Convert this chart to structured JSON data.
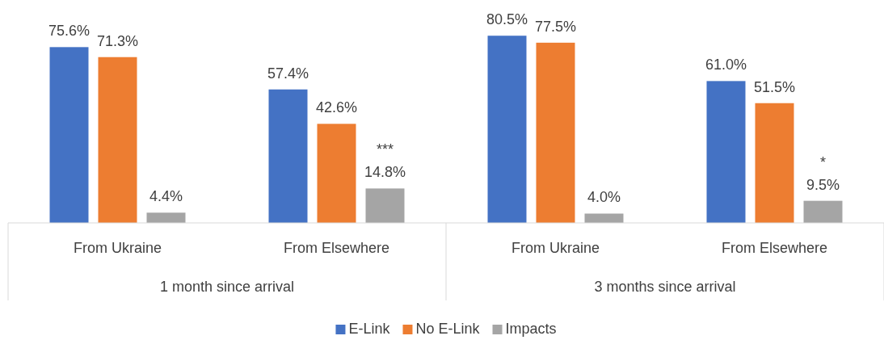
{
  "chart_data": {
    "type": "bar",
    "categories": [
      "From Ukraine",
      "From Elsewhere",
      "From Ukraine",
      "From Elsewhere"
    ],
    "series": [
      {
        "name": "E-Link",
        "color": "#4472c4",
        "values": [
          75.6,
          57.4,
          80.5,
          61.0
        ],
        "value_labels": [
          "75.6%",
          "57.4%",
          "80.5%",
          "61.0%"
        ]
      },
      {
        "name": "No E-Link",
        "color": "#ed7d31",
        "values": [
          71.3,
          42.6,
          77.5,
          51.5
        ],
        "value_labels": [
          "71.3%",
          "42.6%",
          "77.5%",
          "51.5%"
        ]
      },
      {
        "name": "Impacts",
        "color": "#a5a5a5",
        "values": [
          4.4,
          14.8,
          4.0,
          9.5
        ],
        "value_labels": [
          "4.4%",
          "***\n14.8%",
          "4.0%",
          "*\n9.5%"
        ]
      }
    ],
    "annotations": [
      "1 month since arrival",
      "3 months since arrival"
    ],
    "legend": "bottom"
  }
}
